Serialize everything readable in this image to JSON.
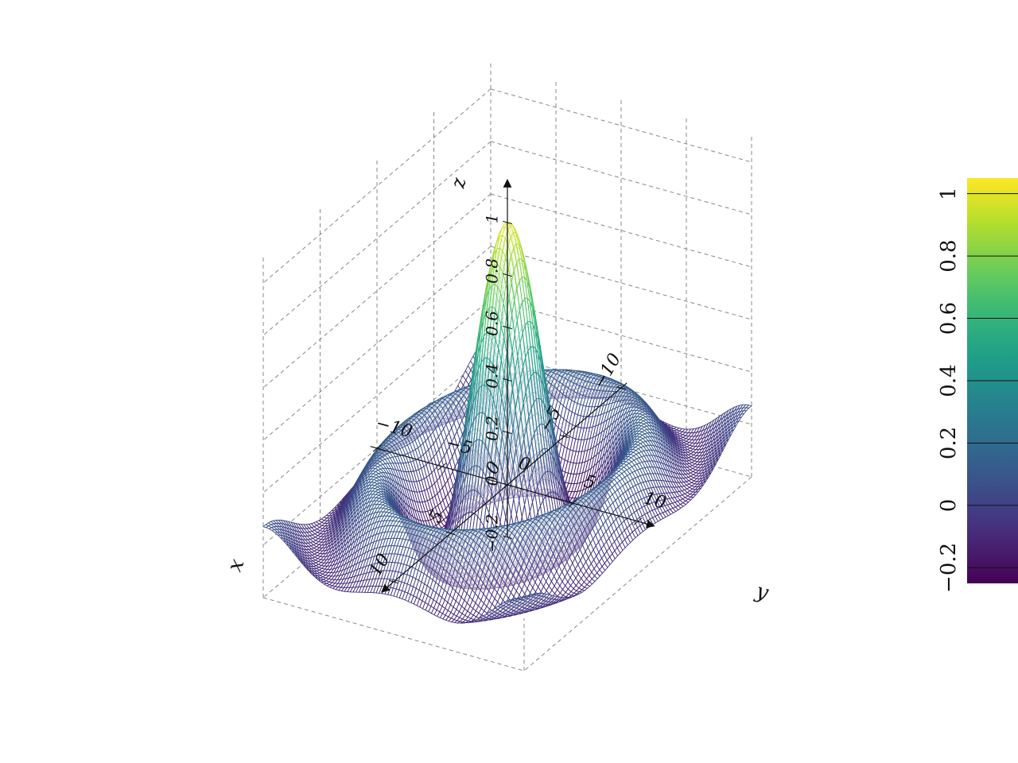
{
  "chart_data": {
    "type": "surface",
    "function": "sinc(r) = sin(r)/r, r = sqrt(x^2 + y^2)",
    "x": {
      "label": "x",
      "range": [
        -10,
        10
      ],
      "ticks": [
        "-10",
        "-5",
        "0",
        "5",
        "10"
      ]
    },
    "y": {
      "label": "y",
      "range": [
        -10,
        10
      ],
      "ticks": [
        "-10",
        "-5",
        "0",
        "5",
        "10"
      ]
    },
    "z": {
      "label": "z",
      "range": [
        -0.2,
        1
      ],
      "ticks": [
        "-0.2",
        "0",
        "0.2",
        "0.4",
        "0.6",
        "0.8",
        "1"
      ]
    },
    "colormap": "viridis",
    "colorbar": {
      "range": [
        -0.25,
        1.05
      ],
      "ticks": [
        "1",
        "0.8",
        "0.6",
        "0.4",
        "0.2",
        "0",
        "-0.2"
      ],
      "placement": "right"
    },
    "grid": true,
    "colors": [
      "#440154",
      "#3b528b",
      "#21918c",
      "#5ec962",
      "#fde725"
    ]
  }
}
